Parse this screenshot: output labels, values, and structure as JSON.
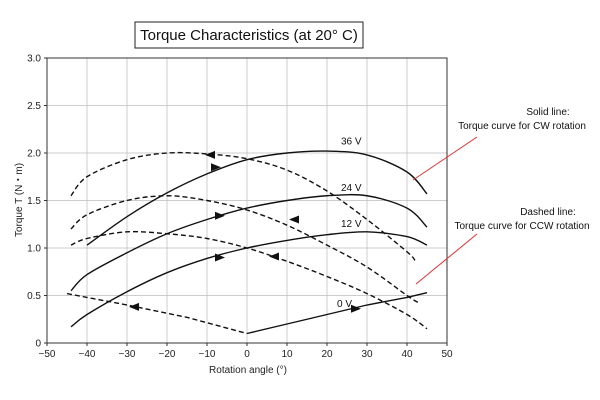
{
  "chart_data": {
    "type": "line",
    "title": "Torque Characteristics (at 20° C)",
    "xlabel": "Rotation angle (°)",
    "ylabel": "Torque T (N・m)",
    "xlim": [
      -50,
      50
    ],
    "ylim": [
      0,
      3.0
    ],
    "xticks": [
      "−50",
      "−40",
      "−30",
      "−20",
      "−10",
      "0",
      "10",
      "20",
      "30",
      "40",
      "50"
    ],
    "yticks": [
      "0",
      "0.5",
      "1.0",
      "1.5",
      "2.0",
      "2.5",
      "3.0"
    ],
    "grid": true,
    "series": [
      {
        "name": "36 V",
        "style": "solid",
        "x": [
          -40,
          -30,
          -20,
          -10,
          0,
          10,
          20,
          30,
          40,
          45
        ],
        "y": [
          1.03,
          1.33,
          1.58,
          1.78,
          1.93,
          2.0,
          2.02,
          1.98,
          1.8,
          1.57
        ]
      },
      {
        "name": "24 V",
        "style": "solid",
        "x": [
          -44,
          -40,
          -30,
          -20,
          -10,
          0,
          10,
          20,
          30,
          40,
          45
        ],
        "y": [
          0.55,
          0.72,
          0.95,
          1.15,
          1.3,
          1.42,
          1.5,
          1.55,
          1.55,
          1.42,
          1.22
        ]
      },
      {
        "name": "12 V",
        "style": "solid",
        "x": [
          -44,
          -40,
          -30,
          -20,
          -10,
          0,
          10,
          20,
          30,
          40,
          45
        ],
        "y": [
          0.17,
          0.3,
          0.54,
          0.74,
          0.89,
          1.0,
          1.08,
          1.14,
          1.17,
          1.12,
          1.03
        ]
      },
      {
        "name": "0 V",
        "style": "solid",
        "x": [
          0,
          10,
          20,
          30,
          40,
          45
        ],
        "y": [
          0.1,
          0.2,
          0.3,
          0.4,
          0.48,
          0.53
        ]
      },
      {
        "name": "36 V",
        "style": "dashed",
        "x": [
          -44,
          -40,
          -30,
          -20,
          -10,
          0,
          10,
          20,
          30,
          40,
          42
        ],
        "y": [
          1.55,
          1.75,
          1.93,
          2.0,
          1.99,
          1.94,
          1.82,
          1.6,
          1.3,
          0.96,
          0.87
        ]
      },
      {
        "name": "24 V",
        "style": "dashed",
        "x": [
          -44,
          -40,
          -30,
          -20,
          -10,
          0,
          10,
          20,
          30,
          40,
          43
        ],
        "y": [
          1.2,
          1.35,
          1.5,
          1.55,
          1.5,
          1.4,
          1.24,
          1.03,
          0.8,
          0.5,
          0.42
        ]
      },
      {
        "name": "12 V",
        "style": "dashed",
        "x": [
          -44,
          -40,
          -30,
          -20,
          -10,
          0,
          10,
          20,
          30,
          40,
          45
        ],
        "y": [
          1.03,
          1.1,
          1.17,
          1.15,
          1.1,
          1.0,
          0.86,
          0.7,
          0.52,
          0.3,
          0.15
        ]
      },
      {
        "name": "0 V",
        "style": "dashed",
        "x": [
          -45,
          -30,
          -15,
          0
        ],
        "y": [
          0.52,
          0.4,
          0.27,
          0.1
        ]
      }
    ],
    "arrows": [
      {
        "x": -8,
        "y": 1.85,
        "dir": "right"
      },
      {
        "x": -7,
        "y": 1.34,
        "dir": "right"
      },
      {
        "x": -7,
        "y": 0.9,
        "dir": "right"
      },
      {
        "x": 27,
        "y": 0.36,
        "dir": "right"
      },
      {
        "x": -9,
        "y": 1.98,
        "dir": "left"
      },
      {
        "x": 12,
        "y": 1.3,
        "dir": "left"
      },
      {
        "x": 7,
        "y": 0.91,
        "dir": "left"
      },
      {
        "x": -28,
        "y": 0.38,
        "dir": "left"
      }
    ],
    "annotations": {
      "solid_title": "Solid line:",
      "solid_desc": "Torque curve for CW rotation",
      "dashed_title": "Dashed line:",
      "dashed_desc": "Torque curve for CCW rotation"
    },
    "colors": {
      "line": "#111111",
      "grid": "#bbbbbb",
      "leader": "#e03030"
    }
  }
}
